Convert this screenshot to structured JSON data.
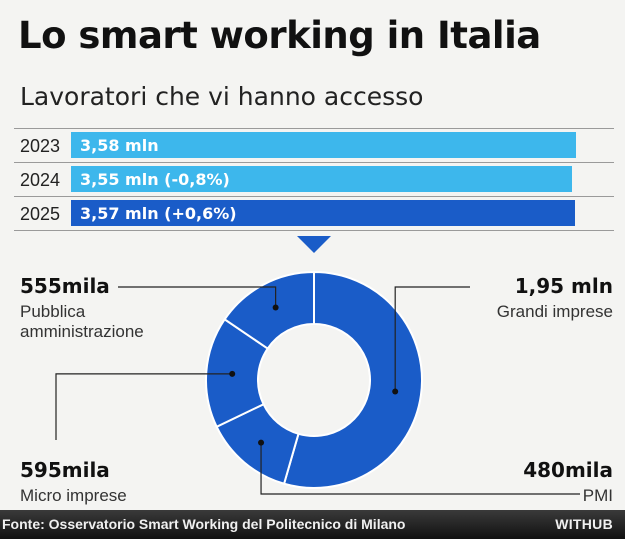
{
  "title": "Lo smart working in Italia",
  "subtitle": "Lavoratori che vi hanno accesso",
  "colors": {
    "light_blue": "#3db7ec",
    "dark_blue": "#1a5cc8",
    "background": "#f4f4f2"
  },
  "chart_data": [
    {
      "type": "bar",
      "orientation": "horizontal",
      "categories": [
        "2023",
        "2024",
        "2025"
      ],
      "values": [
        3.58,
        3.55,
        3.57
      ],
      "unit": "mln",
      "labels": [
        "3,58 mln",
        "3,55 mln (-0,8%)",
        "3,57 mln (+0,6%)"
      ],
      "bar_colors": [
        "#3db7ec",
        "#3db7ec",
        "#1a5cc8"
      ]
    },
    {
      "type": "pie",
      "style": "donut",
      "slices": [
        {
          "label": "Grandi imprese",
          "value": 1950000,
          "value_label": "1,95 mln"
        },
        {
          "label": "PMI",
          "value": 480000,
          "value_label": "480mila"
        },
        {
          "label": "Micro imprese",
          "value": 595000,
          "value_label": "595mila"
        },
        {
          "label": "Pubblica amministrazione",
          "value": 555000,
          "value_label": "555mila"
        }
      ],
      "color": "#1a5cc8"
    }
  ],
  "footer": {
    "source": "Fonte: Osservatorio Smart Working del Politecnico di Milano",
    "brand": "WITHUB"
  }
}
